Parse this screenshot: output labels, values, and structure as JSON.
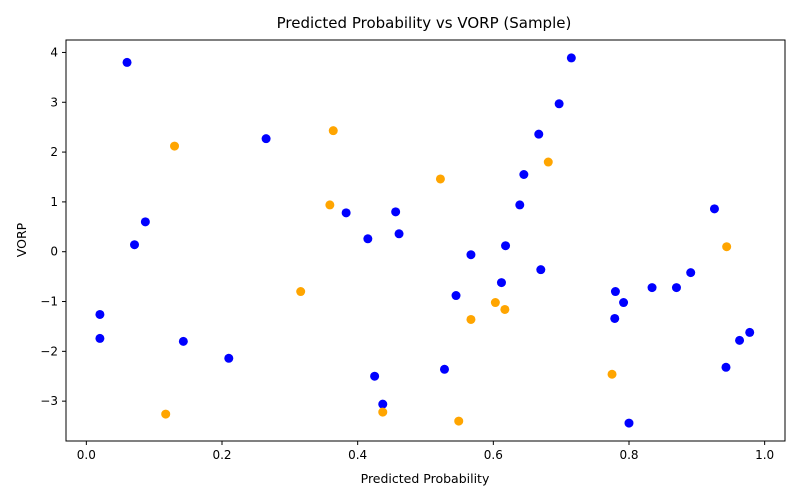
{
  "chart_data": {
    "type": "scatter",
    "title": "Predicted Probability vs VORP (Sample)",
    "xlabel": "Predicted Probability",
    "ylabel": "VORP",
    "xlim": [
      -0.03,
      1.03
    ],
    "ylim": [
      -3.8,
      4.25
    ],
    "xticks": [
      0.0,
      0.2,
      0.4,
      0.6,
      0.8,
      1.0
    ],
    "xtick_labels": [
      "0.0",
      "0.2",
      "0.4",
      "0.6",
      "0.8",
      "1.0"
    ],
    "yticks": [
      -3,
      -2,
      -1,
      0,
      1,
      2,
      3,
      4
    ],
    "ytick_labels": [
      "−3",
      "−2",
      "−1",
      "0",
      "1",
      "2",
      "3",
      "4"
    ],
    "grid": false,
    "legend": "none",
    "colors": {
      "blue": "#0000ff",
      "orange": "#ffa500"
    },
    "series": [
      {
        "color": "blue",
        "points": [
          {
            "x": 0.06,
            "y": 3.8
          },
          {
            "x": 0.715,
            "y": 3.89
          },
          {
            "x": 0.697,
            "y": 2.97
          },
          {
            "x": 0.265,
            "y": 2.27
          },
          {
            "x": 0.667,
            "y": 2.36
          },
          {
            "x": 0.645,
            "y": 1.55
          },
          {
            "x": 0.639,
            "y": 0.94
          },
          {
            "x": 0.926,
            "y": 0.86
          },
          {
            "x": 0.087,
            "y": 0.6
          },
          {
            "x": 0.383,
            "y": 0.78
          },
          {
            "x": 0.456,
            "y": 0.8
          },
          {
            "x": 0.461,
            "y": 0.36
          },
          {
            "x": 0.415,
            "y": 0.26
          },
          {
            "x": 0.071,
            "y": 0.14
          },
          {
            "x": 0.618,
            "y": 0.12
          },
          {
            "x": 0.567,
            "y": -0.06
          },
          {
            "x": 0.67,
            "y": -0.36
          },
          {
            "x": 0.891,
            "y": -0.42
          },
          {
            "x": 0.612,
            "y": -0.62
          },
          {
            "x": 0.834,
            "y": -0.72
          },
          {
            "x": 0.87,
            "y": -0.72
          },
          {
            "x": 0.78,
            "y": -0.8
          },
          {
            "x": 0.545,
            "y": -0.88
          },
          {
            "x": 0.792,
            "y": -1.02
          },
          {
            "x": 0.02,
            "y": -1.26
          },
          {
            "x": 0.779,
            "y": -1.34
          },
          {
            "x": 0.978,
            "y": -1.62
          },
          {
            "x": 0.02,
            "y": -1.74
          },
          {
            "x": 0.963,
            "y": -1.78
          },
          {
            "x": 0.143,
            "y": -1.8
          },
          {
            "x": 0.21,
            "y": -2.14
          },
          {
            "x": 0.943,
            "y": -2.32
          },
          {
            "x": 0.528,
            "y": -2.36
          },
          {
            "x": 0.425,
            "y": -2.5
          },
          {
            "x": 0.437,
            "y": -3.06
          },
          {
            "x": 0.8,
            "y": -3.44
          }
        ]
      },
      {
        "color": "orange",
        "points": [
          {
            "x": 0.364,
            "y": 2.43
          },
          {
            "x": 0.13,
            "y": 2.12
          },
          {
            "x": 0.681,
            "y": 1.8
          },
          {
            "x": 0.522,
            "y": 1.46
          },
          {
            "x": 0.359,
            "y": 0.94
          },
          {
            "x": 0.944,
            "y": 0.1
          },
          {
            "x": 0.316,
            "y": -0.8
          },
          {
            "x": 0.603,
            "y": -1.02
          },
          {
            "x": 0.617,
            "y": -1.16
          },
          {
            "x": 0.567,
            "y": -1.36
          },
          {
            "x": 0.775,
            "y": -2.46
          },
          {
            "x": 0.117,
            "y": -3.26
          },
          {
            "x": 0.437,
            "y": -3.22
          },
          {
            "x": 0.549,
            "y": -3.4
          }
        ]
      }
    ]
  }
}
